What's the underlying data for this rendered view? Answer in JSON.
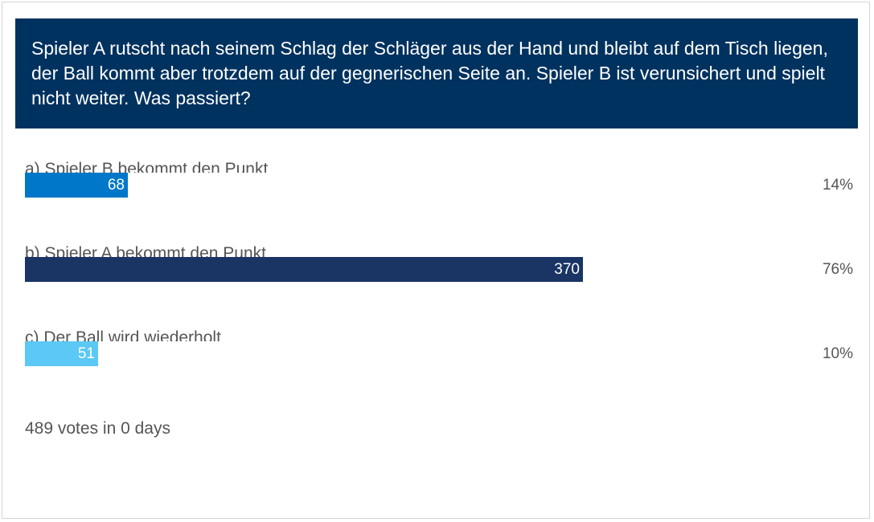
{
  "poll": {
    "question": "Spieler A rutscht nach seinem Schlag der Schläger aus der Hand und bleibt auf dem Tisch liegen, der Ball kommt aber trotzdem auf der gegnerischen Seite an. Spieler B ist verunsichert und spielt nicht weiter. Was passiert?",
    "header_color": "#00325f",
    "options": [
      {
        "label": "a) Spieler B bekommt den Punkt",
        "votes": "68",
        "percent": "14%",
        "share": 0.14,
        "color": "#0077c8"
      },
      {
        "label": "b) Spieler A bekommt den Punkt",
        "votes": "370",
        "percent": "76%",
        "share": 0.76,
        "color": "#1a3464"
      },
      {
        "label": "c) Der Ball wird wiederholt",
        "votes": "51",
        "percent": "10%",
        "share": 0.1,
        "color": "#5bc8f5"
      }
    ],
    "summary": "489 votes in 0 days"
  }
}
